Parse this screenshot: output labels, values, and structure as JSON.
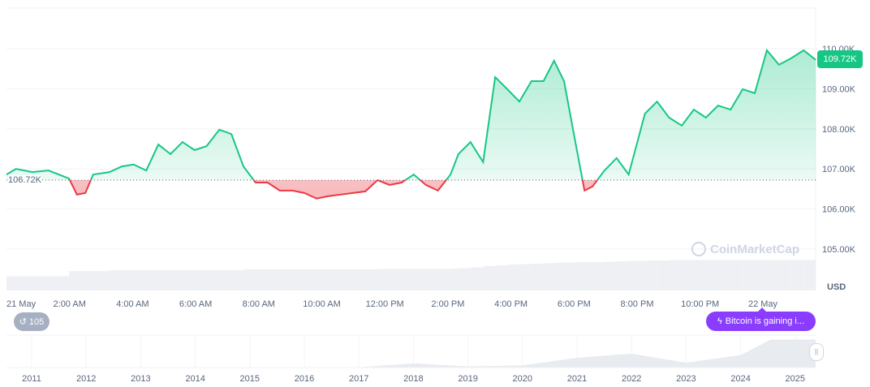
{
  "chart_data": {
    "type": "line",
    "title": "",
    "currency_label": "USD",
    "current_price_label": "109.72K",
    "baseline_label": "106.72K",
    "baseline": 106.72,
    "ylim": [
      104.0,
      110.6
    ],
    "yticks": [
      105,
      106,
      107,
      108,
      109,
      110
    ],
    "ytick_labels": [
      "105.00K",
      "106.00K",
      "107.00K",
      "108.00K",
      "109.00K",
      "110.00K"
    ],
    "xtick_labels": [
      "21 May",
      "2:00 AM",
      "4:00 AM",
      "6:00 AM",
      "8:00 AM",
      "10:00 AM",
      "12:00 PM",
      "2:00 PM",
      "4:00 PM",
      "6:00 PM",
      "8:00 PM",
      "10:00 PM",
      "22 May"
    ],
    "up_color": "#16c784",
    "down_color": "#ea3943",
    "grid": true,
    "x": [
      "21 May 00:00",
      "21 May 00:18",
      "21 May 00:49",
      "21 May 01:20",
      "21 May 01:59",
      "21 May 02:14",
      "21 May 02:30",
      "21 May 02:45",
      "21 May 03:16",
      "21 May 03:39",
      "21 May 04:02",
      "21 May 04:26",
      "21 May 04:49",
      "21 May 05:12",
      "21 May 05:35",
      "21 May 05:58",
      "21 May 06:21",
      "21 May 06:45",
      "21 May 07:08",
      "21 May 07:31",
      "21 May 07:54",
      "21 May 08:17",
      "21 May 08:40",
      "21 May 09:04",
      "21 May 09:27",
      "21 May 09:50",
      "21 May 10:13",
      "21 May 10:36",
      "21 May 10:59",
      "21 May 11:23",
      "21 May 11:46",
      "21 May 12:09",
      "21 May 12:32",
      "21 May 12:55",
      "21 May 13:18",
      "21 May 13:41",
      "21 May 14:05",
      "21 May 14:20",
      "21 May 14:43",
      "21 May 15:07",
      "21 May 15:30",
      "21 May 15:53",
      "21 May 16:16",
      "21 May 16:39",
      "21 May 17:02",
      "21 May 17:22",
      "21 May 17:41",
      "21 May 18:04",
      "21 May 18:20",
      "21 May 18:35",
      "21 May 18:58",
      "21 May 19:21",
      "21 May 19:44",
      "21 May 20:15",
      "21 May 20:38",
      "21 May 21:01",
      "21 May 21:25",
      "21 May 21:48",
      "21 May 22:11",
      "21 May 22:34",
      "21 May 22:58",
      "21 May 23:21",
      "21 May 23:44",
      "22 May 00:07",
      "22 May 00:30",
      "22 May 00:53",
      "22 May 01:17",
      "22 May 01:40"
    ],
    "values": [
      106.86,
      107.0,
      106.92,
      106.96,
      106.76,
      106.36,
      106.4,
      106.86,
      106.92,
      107.06,
      107.11,
      106.96,
      107.61,
      107.37,
      107.67,
      107.47,
      107.57,
      107.98,
      107.87,
      107.06,
      106.66,
      106.66,
      106.46,
      106.46,
      106.4,
      106.26,
      106.32,
      106.36,
      106.4,
      106.44,
      106.72,
      106.6,
      106.66,
      106.86,
      106.6,
      106.46,
      106.86,
      107.37,
      107.67,
      107.17,
      109.29,
      108.99,
      108.68,
      109.19,
      109.19,
      109.7,
      109.19,
      107.57,
      106.46,
      106.56,
      106.96,
      107.27,
      106.86,
      108.38,
      108.68,
      108.28,
      108.08,
      108.48,
      108.28,
      108.58,
      108.48,
      108.99,
      108.89,
      109.96,
      109.6,
      109.76,
      109.96,
      109.72
    ],
    "volume_relative": [
      0.35,
      0.35,
      0.35,
      0.35,
      0.48,
      0.48,
      0.48,
      0.48,
      0.5,
      0.5,
      0.5,
      0.5,
      0.5,
      0.5,
      0.5,
      0.5,
      0.5,
      0.5,
      0.5,
      0.52,
      0.52,
      0.52,
      0.52,
      0.52,
      0.52,
      0.52,
      0.52,
      0.52,
      0.52,
      0.52,
      0.53,
      0.53,
      0.53,
      0.53,
      0.53,
      0.53,
      0.54,
      0.55,
      0.57,
      0.6,
      0.62,
      0.64,
      0.65,
      0.66,
      0.67,
      0.68,
      0.69,
      0.7,
      0.7,
      0.7,
      0.71,
      0.72,
      0.73,
      0.74,
      0.74,
      0.75,
      0.75,
      0.75,
      0.75,
      0.75,
      0.75,
      0.75,
      0.75,
      0.75,
      0.75,
      0.75,
      0.75,
      0.75
    ],
    "navigator": {
      "xtick_labels": [
        "2011",
        "2012",
        "2013",
        "2014",
        "2015",
        "2016",
        "2017",
        "2018",
        "2019",
        "2020",
        "2021",
        "2022",
        "2023",
        "2024",
        "2025"
      ],
      "years": [
        2011,
        2012,
        2013,
        2014,
        2015,
        2016,
        2017,
        2018,
        2019,
        2020,
        2021,
        2022,
        2023,
        2024,
        2025
      ],
      "values": [
        0.3,
        5,
        13,
        800,
        300,
        430,
        1000,
        14000,
        3700,
        7200,
        33000,
        47000,
        16500,
        42000,
        95000
      ]
    }
  },
  "controls": {
    "history_count": "105",
    "news_label": "Bitcoin is gaining i...",
    "watermark": "CoinMarketCap"
  }
}
